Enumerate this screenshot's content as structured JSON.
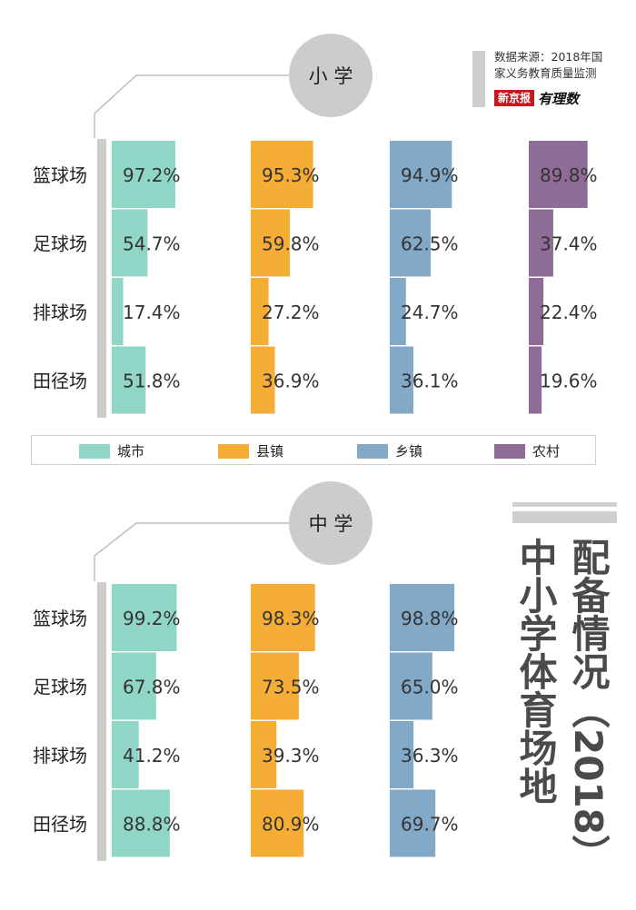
{
  "source": {
    "line1": "数据来源：2018年国",
    "line2": "家义务教育质量监测",
    "brand_box": "新京报",
    "brand_script": "有理数"
  },
  "title": {
    "main_line1": "配备情况（2018）",
    "main_line2": "中小学体育场地"
  },
  "colors": {
    "城市": "#8fd6c6",
    "县镇": "#f5ad35",
    "乡镇": "#83a9c9",
    "农村": "#8e6c97",
    "axis": "#cccccc",
    "circle": "#cccccc"
  },
  "legend": [
    {
      "label": "城市",
      "color": "#8fd6c6"
    },
    {
      "label": "县镇",
      "color": "#f5ad35"
    },
    {
      "label": "乡镇",
      "color": "#83a9c9"
    },
    {
      "label": "农村",
      "color": "#8e6c97"
    }
  ],
  "chart_data": [
    {
      "type": "bar",
      "title": "小 学",
      "categories": [
        "篮球场",
        "足球场",
        "排球场",
        "田径场"
      ],
      "series": [
        {
          "name": "城市",
          "values": [
            97.2,
            54.7,
            17.4,
            51.8
          ]
        },
        {
          "name": "县镇",
          "values": [
            95.3,
            59.8,
            27.2,
            36.9
          ]
        },
        {
          "name": "乡镇",
          "values": [
            94.9,
            62.5,
            24.7,
            36.1
          ]
        },
        {
          "name": "农村",
          "values": [
            89.8,
            37.4,
            22.4,
            19.6
          ]
        }
      ],
      "value_labels": [
        [
          "97.2%",
          "54.7%",
          "17.4%",
          "51.8%"
        ],
        [
          "95.3%",
          "59.8%",
          "27.2%",
          "36.9%"
        ],
        [
          "94.9%",
          "62.5%",
          "24.7%",
          "36.1%"
        ],
        [
          "89.8%",
          "37.4%",
          "22.4%",
          "19.6%"
        ]
      ],
      "xlim": [
        0,
        100
      ]
    },
    {
      "type": "bar",
      "title": "中 学",
      "categories": [
        "篮球场",
        "足球场",
        "排球场",
        "田径场"
      ],
      "series": [
        {
          "name": "城市",
          "values": [
            99.2,
            67.8,
            41.2,
            88.8
          ]
        },
        {
          "name": "县镇",
          "values": [
            98.3,
            73.5,
            39.3,
            80.9
          ]
        },
        {
          "name": "乡镇",
          "values": [
            98.8,
            65.0,
            36.3,
            69.7
          ]
        }
      ],
      "value_labels": [
        [
          "99.2%",
          "67.8%",
          "41.2%",
          "88.8%"
        ],
        [
          "98.3%",
          "73.5%",
          "39.3%",
          "80.9%"
        ],
        [
          "98.8%",
          "65.0%",
          "36.3%",
          "69.7%"
        ]
      ],
      "xlim": [
        0,
        100
      ]
    }
  ]
}
